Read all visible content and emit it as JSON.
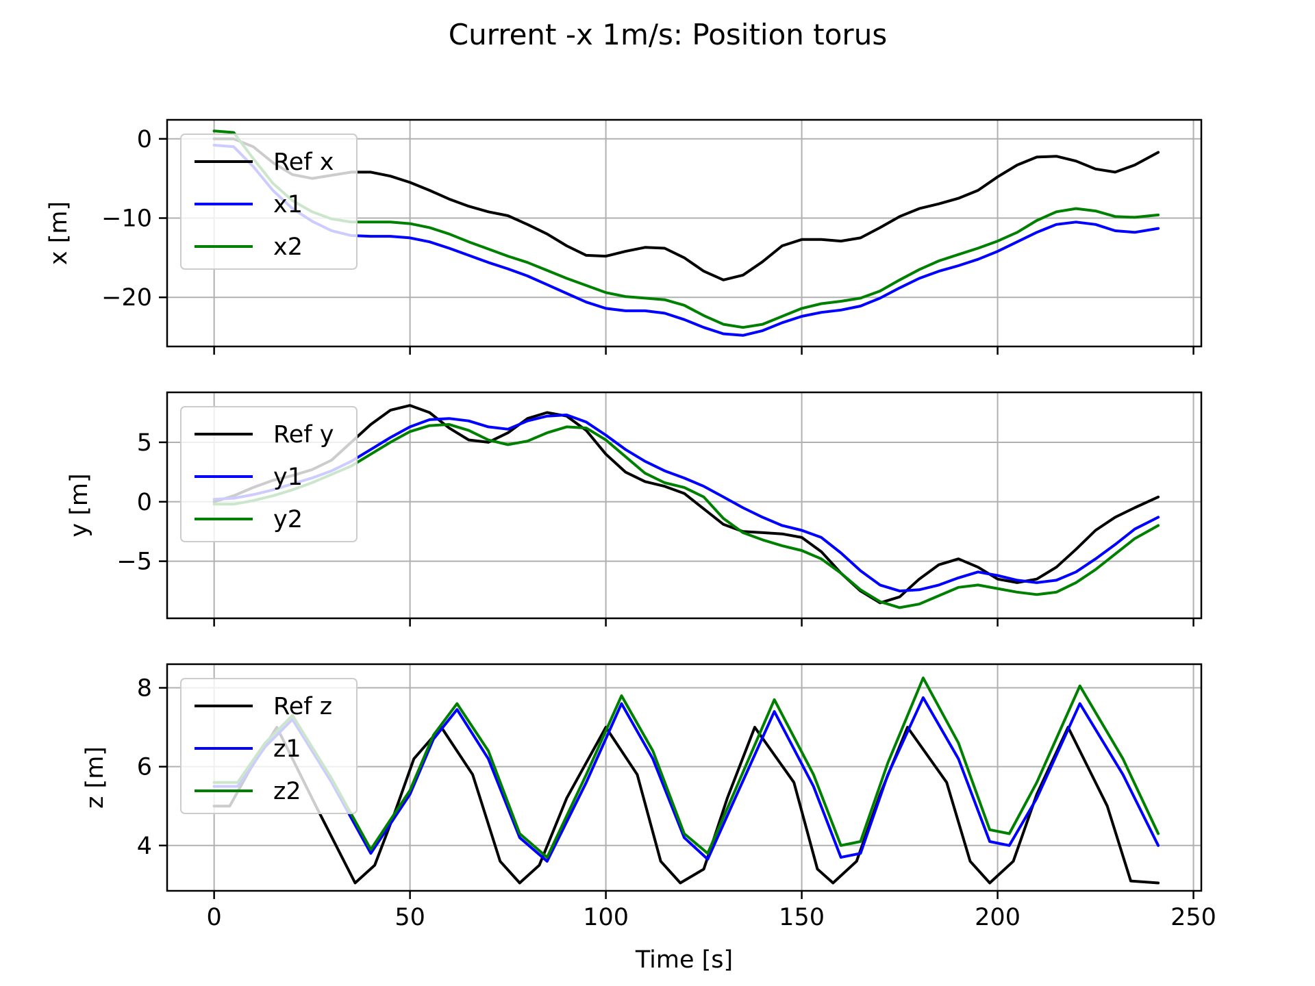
{
  "title": "Current -x 1m/s: Position torus",
  "xlabel": "Time [s]",
  "colors": {
    "ref": "#000000",
    "v1": "#0000ff",
    "v2": "#008000",
    "grid": "#b0b0b0"
  },
  "chart_data": [
    {
      "type": "line",
      "ylabel": "x [m]",
      "xlim": [
        -12,
        252
      ],
      "ylim": [
        -26.2,
        2.4
      ],
      "xticks": [
        0,
        50,
        100,
        150,
        200,
        250
      ],
      "yticks": [
        0,
        -10,
        -20
      ],
      "ytick_labels": [
        "0",
        "−10",
        "−20"
      ],
      "grid": true,
      "legend_position": "upper left",
      "series": [
        {
          "name": "Ref x",
          "color": "#000000",
          "x": [
            0,
            5,
            10,
            15,
            20,
            25,
            30,
            35,
            40,
            45,
            50,
            55,
            60,
            65,
            70,
            75,
            80,
            85,
            90,
            95,
            100,
            105,
            110,
            115,
            120,
            125,
            130,
            135,
            140,
            145,
            150,
            155,
            160,
            165,
            170,
            175,
            180,
            185,
            190,
            195,
            200,
            205,
            210,
            215,
            220,
            225,
            230,
            235,
            241
          ],
          "values": [
            0,
            0,
            -1,
            -3,
            -4.5,
            -5,
            -4.6,
            -4.2,
            -4.2,
            -4.7,
            -5.5,
            -6.5,
            -7.6,
            -8.5,
            -9.2,
            -9.7,
            -10.8,
            -12,
            -13.5,
            -14.7,
            -14.8,
            -14.2,
            -13.7,
            -13.8,
            -15,
            -16.7,
            -17.8,
            -17.2,
            -15.5,
            -13.5,
            -12.7,
            -12.7,
            -12.9,
            -12.5,
            -11.2,
            -9.8,
            -8.8,
            -8.2,
            -7.5,
            -6.5,
            -4.8,
            -3.3,
            -2.3,
            -2.2,
            -2.8,
            -3.8,
            -4.2,
            -3.3,
            -1.7
          ]
        },
        {
          "name": "x1",
          "color": "#0000ff",
          "x": [
            0,
            5,
            10,
            15,
            20,
            25,
            30,
            35,
            40,
            45,
            50,
            55,
            60,
            65,
            70,
            75,
            80,
            85,
            90,
            95,
            100,
            105,
            110,
            115,
            120,
            125,
            130,
            135,
            140,
            145,
            150,
            155,
            160,
            165,
            170,
            175,
            180,
            185,
            190,
            195,
            200,
            205,
            210,
            215,
            220,
            225,
            230,
            235,
            241
          ],
          "values": [
            -0.8,
            -1,
            -3.5,
            -6.5,
            -8.8,
            -10.4,
            -11.6,
            -12.2,
            -12.3,
            -12.3,
            -12.5,
            -13,
            -13.8,
            -14.7,
            -15.6,
            -16.4,
            -17.3,
            -18.4,
            -19.5,
            -20.6,
            -21.4,
            -21.7,
            -21.7,
            -22,
            -22.8,
            -23.8,
            -24.6,
            -24.8,
            -24.2,
            -23.2,
            -22.4,
            -21.9,
            -21.6,
            -21.1,
            -20.1,
            -18.8,
            -17.6,
            -16.7,
            -16,
            -15.2,
            -14.2,
            -13,
            -11.8,
            -10.8,
            -10.5,
            -10.8,
            -11.6,
            -11.8,
            -11.3
          ]
        },
        {
          "name": "x2",
          "color": "#008000",
          "x": [
            0,
            5,
            10,
            15,
            20,
            25,
            30,
            35,
            40,
            45,
            50,
            55,
            60,
            65,
            70,
            75,
            80,
            85,
            90,
            95,
            100,
            105,
            110,
            115,
            120,
            125,
            130,
            135,
            140,
            145,
            150,
            155,
            160,
            165,
            170,
            175,
            180,
            185,
            190,
            195,
            200,
            205,
            210,
            215,
            220,
            225,
            230,
            235,
            241
          ],
          "values": [
            1,
            0.8,
            -2.5,
            -5.6,
            -7.8,
            -9.2,
            -10.1,
            -10.5,
            -10.5,
            -10.5,
            -10.7,
            -11.2,
            -12,
            -13,
            -13.9,
            -14.8,
            -15.6,
            -16.6,
            -17.6,
            -18.5,
            -19.4,
            -19.9,
            -20.1,
            -20.3,
            -21,
            -22.3,
            -23.4,
            -23.8,
            -23.4,
            -22.4,
            -21.4,
            -20.8,
            -20.5,
            -20.1,
            -19.2,
            -17.8,
            -16.5,
            -15.4,
            -14.6,
            -13.8,
            -12.9,
            -11.8,
            -10.3,
            -9.2,
            -8.8,
            -9.1,
            -9.8,
            -9.9,
            -9.6
          ]
        }
      ]
    },
    {
      "type": "line",
      "ylabel": "y [m]",
      "xlim": [
        -12,
        252
      ],
      "ylim": [
        -9.8,
        9.2
      ],
      "xticks": [
        0,
        50,
        100,
        150,
        200,
        250
      ],
      "yticks": [
        5,
        0,
        -5
      ],
      "ytick_labels": [
        "5",
        "0",
        "−5"
      ],
      "grid": true,
      "legend_position": "upper left",
      "series": [
        {
          "name": "Ref y",
          "color": "#000000",
          "x": [
            0,
            5,
            10,
            15,
            20,
            25,
            30,
            35,
            40,
            45,
            50,
            55,
            60,
            65,
            70,
            75,
            80,
            85,
            90,
            95,
            100,
            105,
            110,
            115,
            120,
            125,
            130,
            135,
            140,
            145,
            150,
            155,
            160,
            165,
            170,
            175,
            180,
            185,
            190,
            195,
            200,
            205,
            210,
            215,
            220,
            225,
            230,
            235,
            241
          ],
          "values": [
            0,
            0.5,
            1.2,
            1.8,
            2.2,
            2.7,
            3.5,
            5,
            6.5,
            7.7,
            8.1,
            7.5,
            6.2,
            5.2,
            5,
            5.8,
            7,
            7.5,
            7.2,
            6,
            4,
            2.5,
            1.7,
            1.3,
            0.7,
            -0.6,
            -1.9,
            -2.5,
            -2.6,
            -2.7,
            -3,
            -4.2,
            -6,
            -7.5,
            -8.5,
            -8,
            -6.5,
            -5.3,
            -4.8,
            -5.5,
            -6.5,
            -6.8,
            -6.5,
            -5.5,
            -4,
            -2.4,
            -1.3,
            -0.5,
            0.4
          ]
        },
        {
          "name": "y1",
          "color": "#0000ff",
          "x": [
            0,
            5,
            10,
            15,
            20,
            25,
            30,
            35,
            40,
            45,
            50,
            55,
            60,
            65,
            70,
            75,
            80,
            85,
            90,
            95,
            100,
            105,
            110,
            115,
            120,
            125,
            130,
            135,
            140,
            145,
            150,
            155,
            160,
            165,
            170,
            175,
            180,
            185,
            190,
            195,
            200,
            205,
            210,
            215,
            220,
            225,
            230,
            235,
            241
          ],
          "values": [
            0.2,
            0.3,
            0.6,
            1,
            1.5,
            2,
            2.6,
            3.4,
            4.4,
            5.4,
            6.3,
            6.9,
            7,
            6.8,
            6.3,
            6.1,
            6.8,
            7.2,
            7.3,
            6.7,
            5.6,
            4.4,
            3.4,
            2.6,
            2,
            1.3,
            0.4,
            -0.5,
            -1.3,
            -2,
            -2.4,
            -3,
            -4.3,
            -5.8,
            -7,
            -7.5,
            -7.4,
            -7,
            -6.4,
            -5.9,
            -6.2,
            -6.6,
            -6.8,
            -6.6,
            -5.9,
            -4.8,
            -3.6,
            -2.3,
            -1.3
          ]
        },
        {
          "name": "y2",
          "color": "#008000",
          "x": [
            0,
            5,
            10,
            15,
            20,
            25,
            30,
            35,
            40,
            45,
            50,
            55,
            60,
            65,
            70,
            75,
            80,
            85,
            90,
            95,
            100,
            105,
            110,
            115,
            120,
            125,
            130,
            135,
            140,
            145,
            150,
            155,
            160,
            165,
            170,
            175,
            180,
            185,
            190,
            195,
            200,
            205,
            210,
            215,
            220,
            225,
            230,
            235,
            241
          ],
          "values": [
            -0.2,
            -0.2,
            0.1,
            0.5,
            1,
            1.6,
            2.3,
            3,
            4,
            5,
            5.9,
            6.4,
            6.5,
            6,
            5.2,
            4.8,
            5.1,
            5.8,
            6.3,
            6.2,
            5.2,
            3.8,
            2.4,
            1.6,
            1.2,
            0.4,
            -1.4,
            -2.6,
            -3.2,
            -3.7,
            -4.1,
            -4.8,
            -6,
            -7.4,
            -8.4,
            -8.9,
            -8.6,
            -7.9,
            -7.2,
            -7,
            -7.3,
            -7.6,
            -7.8,
            -7.6,
            -6.8,
            -5.7,
            -4.4,
            -3.1,
            -2
          ]
        }
      ]
    },
    {
      "type": "line",
      "ylabel": "z [m]",
      "xlim": [
        -12,
        252
      ],
      "ylim": [
        2.85,
        8.6
      ],
      "xticks": [
        0,
        50,
        100,
        150,
        200,
        250
      ],
      "xtick_labels": [
        "0",
        "50",
        "100",
        "150",
        "200",
        "250"
      ],
      "yticks": [
        8,
        6,
        4
      ],
      "ytick_labels": [
        "8",
        "6",
        "4"
      ],
      "grid": true,
      "legend_position": "upper left",
      "series": [
        {
          "name": "Ref z",
          "color": "#000000",
          "x": [
            0,
            4,
            9,
            16,
            26,
            36,
            41,
            46,
            51,
            58,
            66,
            73,
            78,
            83,
            90,
            100,
            108,
            114,
            119,
            125,
            131,
            138,
            148,
            154,
            158,
            164,
            170,
            177,
            187,
            193,
            198,
            204,
            210,
            218,
            228,
            234,
            241
          ],
          "values": [
            5,
            5,
            5.9,
            7,
            5,
            3.05,
            3.5,
            4.8,
            6.2,
            7,
            5.8,
            3.6,
            3.05,
            3.5,
            5.2,
            7,
            5.8,
            3.6,
            3.05,
            3.4,
            5.2,
            7,
            5.6,
            3.4,
            3.05,
            3.6,
            5.3,
            7,
            5.6,
            3.6,
            3.05,
            3.6,
            5.3,
            7,
            5,
            3.1,
            3.05
          ]
        },
        {
          "name": "z1",
          "color": "#0000ff",
          "x": [
            0,
            6,
            13,
            20,
            30,
            40,
            50,
            56,
            62,
            70,
            78,
            85,
            95,
            104,
            112,
            120,
            126,
            133,
            143,
            153,
            160,
            165,
            172,
            181,
            190,
            198,
            203,
            210,
            221,
            232,
            241
          ],
          "values": [
            5.5,
            5.5,
            6.5,
            7.2,
            5.6,
            3.8,
            5.3,
            6.7,
            7.45,
            6.2,
            4.2,
            3.6,
            5.6,
            7.6,
            6.2,
            4.2,
            3.65,
            5.2,
            7.4,
            5.5,
            3.7,
            3.8,
            5.8,
            7.75,
            6.2,
            4.1,
            4,
            5.2,
            7.6,
            5.8,
            4
          ]
        },
        {
          "name": "z2",
          "color": "#008000",
          "x": [
            0,
            6,
            13,
            20,
            30,
            40,
            50,
            56,
            62,
            70,
            78,
            85,
            95,
            104,
            112,
            120,
            126,
            133,
            143,
            153,
            160,
            165,
            172,
            181,
            190,
            198,
            203,
            210,
            221,
            232,
            241
          ],
          "values": [
            5.6,
            5.6,
            6.6,
            7.3,
            5.7,
            3.9,
            5.4,
            6.8,
            7.6,
            6.4,
            4.3,
            3.7,
            5.8,
            7.8,
            6.4,
            4.3,
            3.8,
            5.4,
            7.7,
            5.8,
            4,
            4.1,
            6.1,
            8.25,
            6.6,
            4.4,
            4.3,
            5.6,
            8.05,
            6.2,
            4.3
          ]
        }
      ]
    }
  ]
}
